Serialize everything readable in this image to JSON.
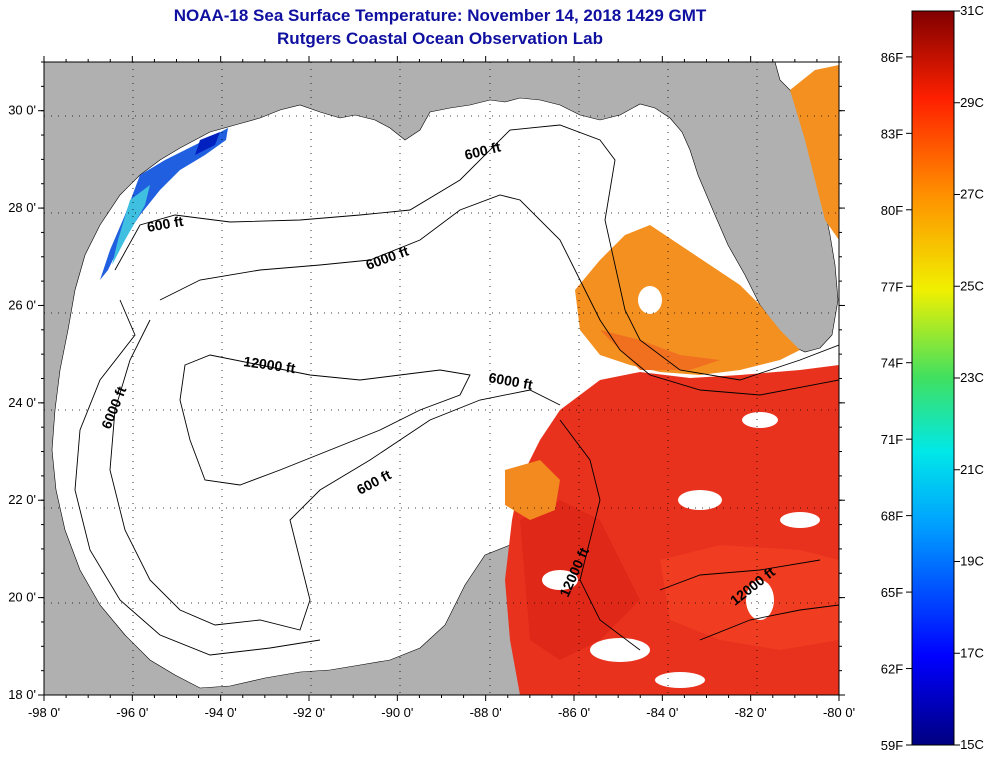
{
  "header": {
    "title": "NOAA-18 Sea Surface Temperature:  November 14, 2018 1429 GMT",
    "subtitle": "Rutgers Coastal Ocean Observation Lab"
  },
  "map": {
    "lon_range": [
      -98,
      -80
    ],
    "lat_range": [
      18,
      31
    ],
    "lon_ticks": [
      "-98 0'",
      "-96 0'",
      "-94 0'",
      "-92 0'",
      "-90 0'",
      "-88 0'",
      "-86 0'",
      "-84 0'",
      "-82 0'",
      "-80 0'"
    ],
    "lat_ticks": [
      "18 0'",
      "20 0'",
      "22 0'",
      "24 0'",
      "26 0'",
      "28 0'",
      "30 0'"
    ],
    "contour_labels": [
      "600 ft",
      "600 ft",
      "600 ft",
      "6000 ft",
      "6000 ft",
      "6000 ft",
      "12000 ft",
      "12000 ft",
      "12000 ft"
    ],
    "colors": {
      "land": "#b0b0b0",
      "no_data": "#ffffff",
      "contour": "#000000",
      "warm": "#e8321e",
      "orange": "#f39020"
    }
  },
  "colorbar": {
    "fahrenheit_labels": [
      "86F",
      "83F",
      "80F",
      "77F",
      "74F",
      "71F",
      "68F",
      "65F",
      "62F",
      "59F"
    ],
    "celsius_labels": [
      "31C",
      "29C",
      "27C",
      "25C",
      "23C",
      "21C",
      "19C",
      "17C",
      "15C"
    ],
    "temp_range_c": [
      15,
      31
    ]
  }
}
